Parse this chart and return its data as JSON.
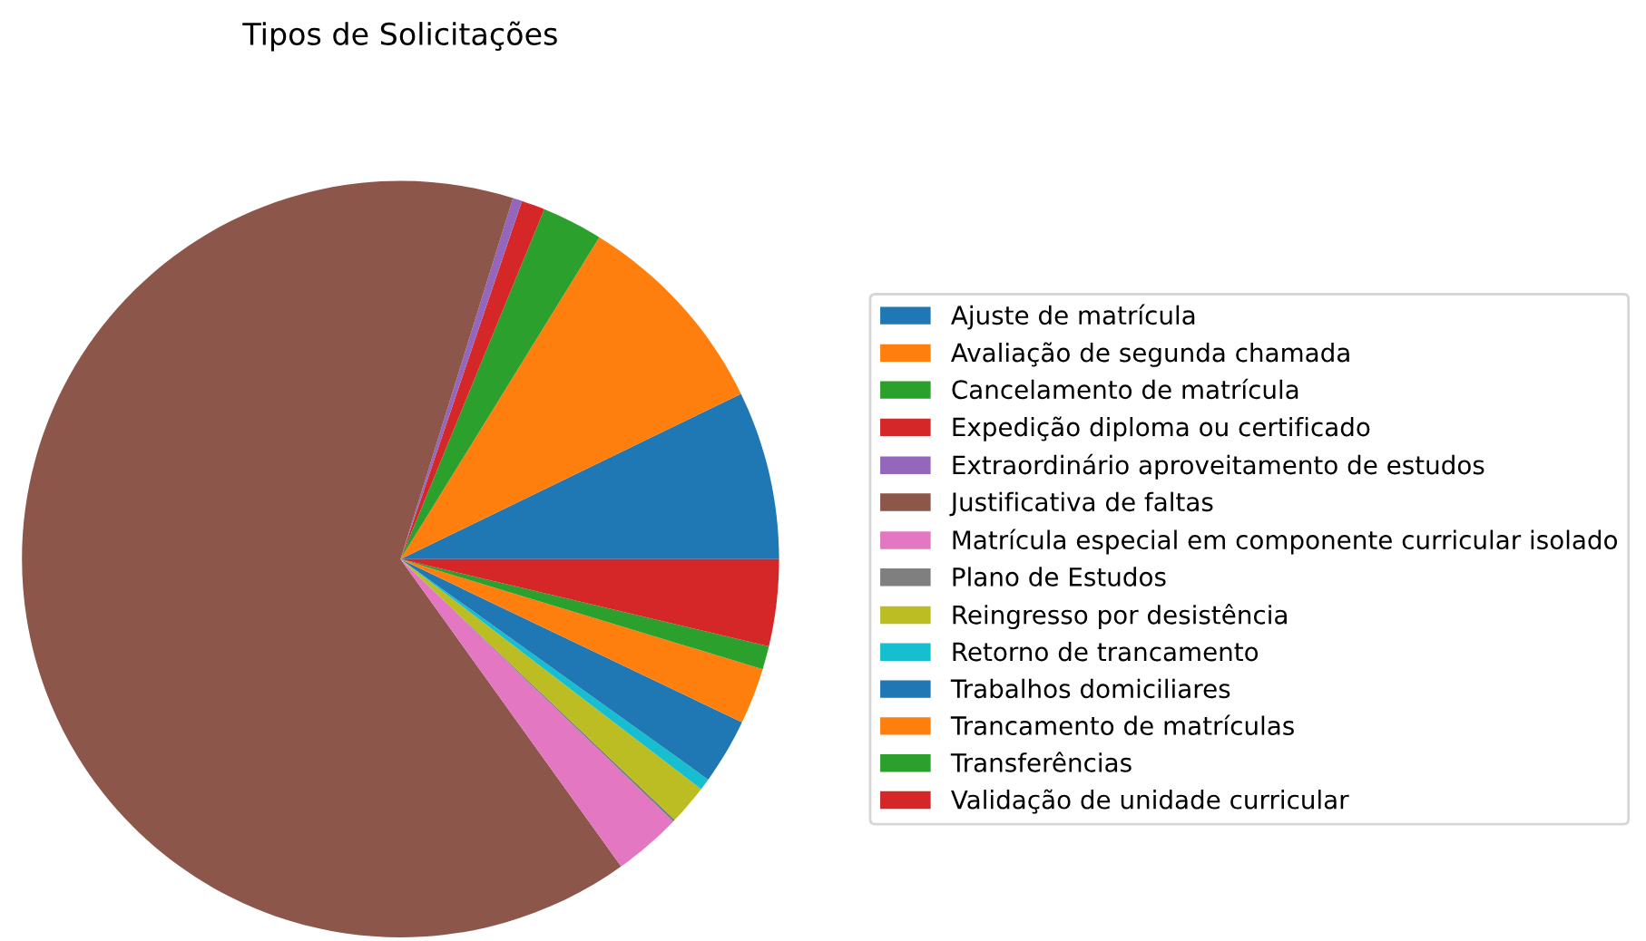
{
  "chart_data": {
    "type": "pie",
    "title": "Tipos de Solicitações",
    "categories": [
      "Ajuste de matrícula",
      "Avaliação de segunda chamada",
      "Cancelamento de matrícula",
      "Expedição diploma ou certificado",
      "Extraordinário aproveitamento de estudos",
      "Justificativa de faltas",
      "Matrícula especial em componente curricular isolado",
      "Plano de Estudos",
      "Reingresso por desistência",
      "Retorno de trancamento",
      "Trabalhos domiciliares",
      "Trancamento de matrículas",
      "Transferências",
      "Validação de unidade curricular"
    ],
    "values": [
      7.2,
      9.0,
      2.6,
      1.0,
      0.4,
      64.7,
      2.9,
      0.1,
      1.7,
      0.5,
      2.8,
      2.4,
      1.0,
      3.7
    ],
    "colors": [
      "#1f77b4",
      "#ff7f0e",
      "#2ca02c",
      "#d62728",
      "#9467bd",
      "#8c564b",
      "#e377c2",
      "#7f7f7f",
      "#bcbd22",
      "#17becf",
      "#1f77b4",
      "#ff7f0e",
      "#2ca02c",
      "#d62728"
    ],
    "legend": "right"
  }
}
